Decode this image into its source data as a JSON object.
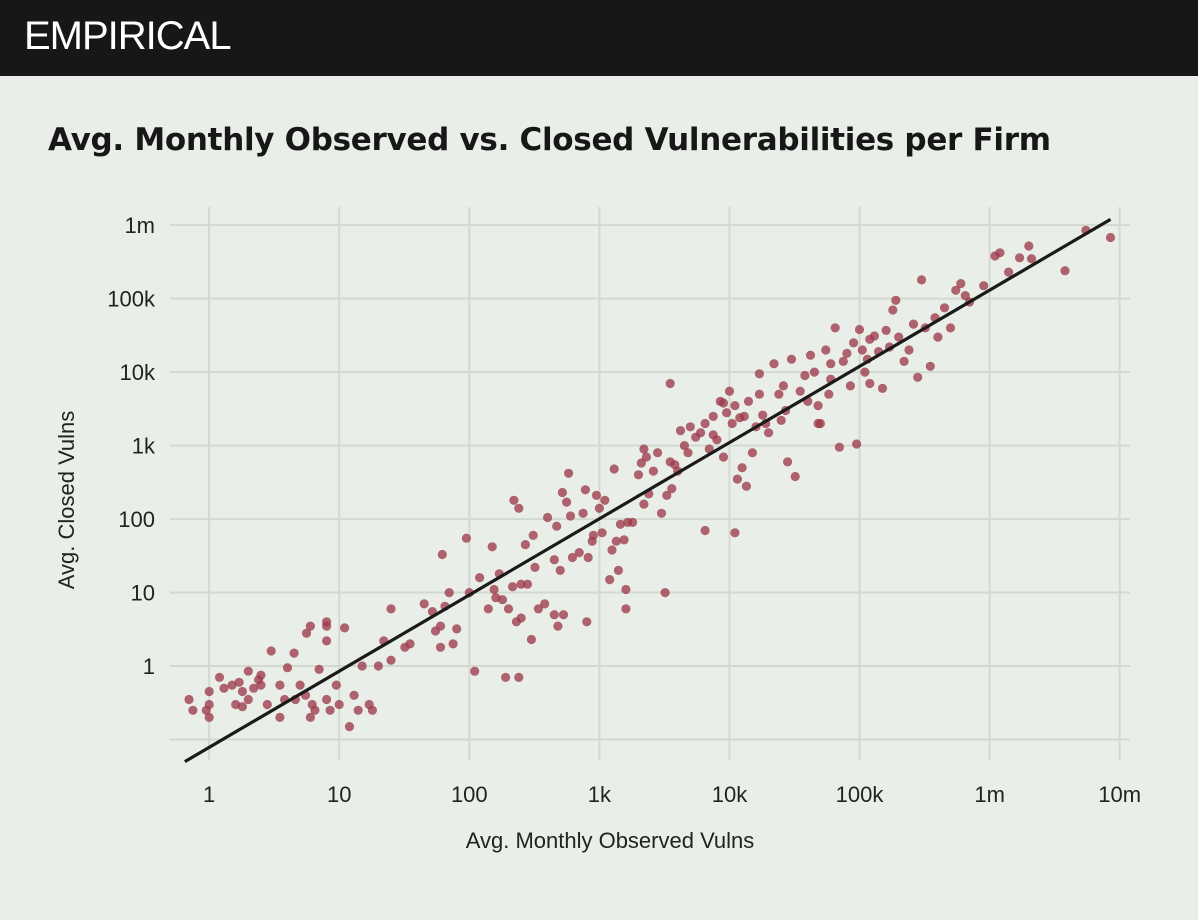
{
  "brand": "EMPIRICAL",
  "chart_data": {
    "type": "scatter",
    "title": "Avg. Monthly Observed vs. Closed Vulnerabilities per Firm",
    "xlabel": "Avg. Monthly Observed Vulns",
    "ylabel": "Avg. Closed Vulns",
    "x_scale": "log10",
    "y_scale": "log10",
    "xlim": [
      0.5,
      12000000
    ],
    "ylim": [
      0.045,
      2200000
    ],
    "x_ticks": [
      {
        "value": 1,
        "label": "1"
      },
      {
        "value": 10,
        "label": "10"
      },
      {
        "value": 100,
        "label": "100"
      },
      {
        "value": 1000,
        "label": "1k"
      },
      {
        "value": 10000,
        "label": "10k"
      },
      {
        "value": 100000,
        "label": "100k"
      },
      {
        "value": 1000000,
        "label": "1m"
      },
      {
        "value": 10000000,
        "label": "10m"
      }
    ],
    "y_ticks": [
      {
        "value": 1,
        "label": "1"
      },
      {
        "value": 10,
        "label": "10"
      },
      {
        "value": 100,
        "label": "100"
      },
      {
        "value": 1000,
        "label": "1k"
      },
      {
        "value": 10000,
        "label": "10k"
      },
      {
        "value": 100000,
        "label": "100k"
      },
      {
        "value": 1000000,
        "label": "1m"
      }
    ],
    "grid": true,
    "point_color": "#9e3a4b",
    "line_color": "#1a1a1a",
    "trend_line": {
      "x": [
        0.65,
        8500000
      ],
      "y": [
        0.05,
        1200000
      ]
    },
    "points": [
      [
        0.7,
        0.35
      ],
      [
        0.75,
        0.25
      ],
      [
        0.95,
        0.25
      ],
      [
        1,
        0.2
      ],
      [
        1,
        0.45
      ],
      [
        1,
        0.3
      ],
      [
        1.2,
        0.7
      ],
      [
        1.3,
        0.5
      ],
      [
        1.5,
        0.55
      ],
      [
        1.6,
        0.3
      ],
      [
        1.7,
        0.6
      ],
      [
        1.8,
        0.45
      ],
      [
        2,
        0.35
      ],
      [
        2,
        0.85
      ],
      [
        2.2,
        0.5
      ],
      [
        2.4,
        0.65
      ],
      [
        2.5,
        0.75
      ],
      [
        1.8,
        0.28
      ],
      [
        2.8,
        0.3
      ],
      [
        3,
        1.6
      ],
      [
        3.5,
        0.2
      ],
      [
        3.5,
        0.55
      ],
      [
        3.8,
        0.35
      ],
      [
        4,
        0.95
      ],
      [
        4.5,
        1.5
      ],
      [
        4.6,
        0.35
      ],
      [
        5,
        0.55
      ],
      [
        5.5,
        0.4
      ],
      [
        6,
        0.2
      ],
      [
        6.2,
        0.3
      ],
      [
        6.5,
        0.25
      ],
      [
        5.6,
        2.8
      ],
      [
        6,
        3.5
      ],
      [
        7,
        0.9
      ],
      [
        8,
        0.35
      ],
      [
        8,
        2.2
      ],
      [
        8,
        3.5
      ],
      [
        8,
        4
      ],
      [
        8.5,
        0.25
      ],
      [
        9.5,
        0.55
      ],
      [
        10,
        0.3
      ],
      [
        11,
        3.3
      ],
      [
        12,
        0.15
      ],
      [
        13,
        0.4
      ],
      [
        14,
        0.25
      ],
      [
        15,
        1
      ],
      [
        17,
        0.3
      ],
      [
        18,
        0.25
      ],
      [
        20,
        1
      ],
      [
        22,
        2.2
      ],
      [
        25,
        1.2
      ],
      [
        25,
        6
      ],
      [
        32,
        1.8
      ],
      [
        35,
        2
      ],
      [
        45,
        7
      ],
      [
        52,
        5.5
      ],
      [
        55,
        3
      ],
      [
        60,
        1.8
      ],
      [
        60,
        3.5
      ],
      [
        62,
        33
      ],
      [
        65,
        6.5
      ],
      [
        70,
        10
      ],
      [
        75,
        2
      ],
      [
        80,
        3.2
      ],
      [
        95,
        55
      ],
      [
        100,
        10
      ],
      [
        110,
        0.85
      ],
      [
        120,
        16
      ],
      [
        140,
        6
      ],
      [
        150,
        42
      ],
      [
        155,
        11
      ],
      [
        160,
        8.5
      ],
      [
        170,
        18
      ],
      [
        180,
        8
      ],
      [
        190,
        0.7
      ],
      [
        200,
        6
      ],
      [
        215,
        12
      ],
      [
        220,
        180
      ],
      [
        230,
        4
      ],
      [
        240,
        140
      ],
      [
        240,
        0.7
      ],
      [
        250,
        4.5
      ],
      [
        250,
        13
      ],
      [
        270,
        45
      ],
      [
        280,
        13
      ],
      [
        300,
        2.3
      ],
      [
        310,
        60
      ],
      [
        320,
        22
      ],
      [
        340,
        6
      ],
      [
        380,
        7
      ],
      [
        400,
        105
      ],
      [
        450,
        28
      ],
      [
        450,
        5
      ],
      [
        470,
        80
      ],
      [
        480,
        3.5
      ],
      [
        500,
        20
      ],
      [
        520,
        230
      ],
      [
        530,
        5
      ],
      [
        560,
        170
      ],
      [
        580,
        420
      ],
      [
        600,
        110
      ],
      [
        620,
        30
      ],
      [
        700,
        35
      ],
      [
        750,
        120
      ],
      [
        780,
        250
      ],
      [
        800,
        4
      ],
      [
        820,
        30
      ],
      [
        880,
        50
      ],
      [
        900,
        60
      ],
      [
        950,
        210
      ],
      [
        1000,
        140
      ],
      [
        1050,
        65
      ],
      [
        1100,
        180
      ],
      [
        1200,
        15
      ],
      [
        1250,
        38
      ],
      [
        1300,
        480
      ],
      [
        1350,
        50
      ],
      [
        1400,
        20
      ],
      [
        1450,
        85
      ],
      [
        1550,
        52
      ],
      [
        1600,
        11
      ],
      [
        1600,
        6
      ],
      [
        1650,
        90
      ],
      [
        1800,
        90
      ],
      [
        2000,
        400
      ],
      [
        2100,
        580
      ],
      [
        2200,
        900
      ],
      [
        2200,
        160
      ],
      [
        2300,
        700
      ],
      [
        2400,
        220
      ],
      [
        2600,
        450
      ],
      [
        2800,
        800
      ],
      [
        3000,
        120
      ],
      [
        3200,
        10
      ],
      [
        3300,
        210
      ],
      [
        3500,
        600
      ],
      [
        3600,
        260
      ],
      [
        3800,
        550
      ],
      [
        4000,
        450
      ],
      [
        4200,
        1600
      ],
      [
        4500,
        1000
      ],
      [
        4800,
        800
      ],
      [
        5000,
        1800
      ],
      [
        5500,
        1300
      ],
      [
        6000,
        1500
      ],
      [
        6500,
        2000
      ],
      [
        6500,
        70
      ],
      [
        7000,
        900
      ],
      [
        7500,
        2500
      ],
      [
        8000,
        1200
      ],
      [
        8500,
        4000
      ],
      [
        9000,
        700
      ],
      [
        9500,
        2800
      ],
      [
        10000,
        5500
      ],
      [
        10500,
        2000
      ],
      [
        11000,
        3500
      ],
      [
        11000,
        65
      ],
      [
        11500,
        350
      ],
      [
        12000,
        2400
      ],
      [
        12500,
        500
      ],
      [
        13000,
        2500
      ],
      [
        13500,
        280
      ],
      [
        14000,
        4000
      ],
      [
        15000,
        800
      ],
      [
        16000,
        1800
      ],
      [
        17000,
        5000
      ],
      [
        18000,
        2600
      ],
      [
        19000,
        2000
      ],
      [
        20000,
        1500
      ],
      [
        22000,
        13000
      ],
      [
        24000,
        5000
      ],
      [
        25000,
        2200
      ],
      [
        27000,
        3000
      ],
      [
        28000,
        600
      ],
      [
        30000,
        15000
      ],
      [
        32000,
        380
      ],
      [
        35000,
        5500
      ],
      [
        38000,
        9000
      ],
      [
        40000,
        4000
      ],
      [
        42000,
        17000
      ],
      [
        45000,
        10000
      ],
      [
        48000,
        3500
      ],
      [
        50000,
        2000
      ],
      [
        55000,
        20000
      ],
      [
        58000,
        5000
      ],
      [
        60000,
        8000
      ],
      [
        65000,
        40000
      ],
      [
        70000,
        950
      ],
      [
        75000,
        14000
      ],
      [
        80000,
        18000
      ],
      [
        85000,
        6500
      ],
      [
        90000,
        25000
      ],
      [
        95000,
        1050
      ],
      [
        100000,
        38000
      ],
      [
        105000,
        20000
      ],
      [
        110000,
        10000
      ],
      [
        115000,
        15000
      ],
      [
        120000,
        7000
      ],
      [
        130000,
        31000
      ],
      [
        140000,
        19000
      ],
      [
        150000,
        6000
      ],
      [
        160000,
        37000
      ],
      [
        170000,
        22000
      ],
      [
        180000,
        70000
      ],
      [
        190000,
        95000
      ],
      [
        200000,
        30000
      ],
      [
        220000,
        14000
      ],
      [
        240000,
        20000
      ],
      [
        260000,
        45000
      ],
      [
        280000,
        8500
      ],
      [
        300000,
        180000
      ],
      [
        320000,
        40000
      ],
      [
        350000,
        12000
      ],
      [
        380000,
        55000
      ],
      [
        400000,
        30000
      ],
      [
        450000,
        75000
      ],
      [
        500000,
        40000
      ],
      [
        550000,
        130000
      ],
      [
        600000,
        160000
      ],
      [
        650000,
        110000
      ],
      [
        700000,
        90000
      ],
      [
        900000,
        150000
      ],
      [
        1100000,
        380000
      ],
      [
        1200000,
        420000
      ],
      [
        1400000,
        230000
      ],
      [
        1700000,
        360000
      ],
      [
        2000000,
        520000
      ],
      [
        2100000,
        350000
      ],
      [
        3800000,
        240000
      ],
      [
        5500000,
        850000
      ],
      [
        8500000,
        680000
      ],
      [
        3500,
        7000
      ],
      [
        7500,
        1400
      ],
      [
        9000,
        3800
      ],
      [
        17000,
        9500
      ],
      [
        26000,
        6500
      ],
      [
        48000,
        2000
      ],
      [
        60000,
        13000
      ],
      [
        120000,
        28000
      ],
      [
        2.5,
        0.55
      ]
    ]
  }
}
